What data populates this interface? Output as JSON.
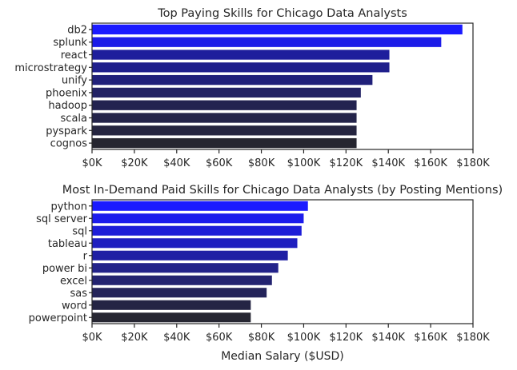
{
  "chart_data": [
    {
      "type": "bar",
      "orientation": "horizontal",
      "title": "Top Paying Skills for Chicago Data Analysts",
      "xlabel": "",
      "ylabel": "",
      "categories": [
        "db2",
        "splunk",
        "react",
        "microstrategy",
        "unify",
        "phoenix",
        "hadoop",
        "scala",
        "pyspark",
        "cognos"
      ],
      "values": [
        175000,
        165000,
        140500,
        140500,
        132500,
        127000,
        125000,
        125000,
        125000,
        125000
      ],
      "xlim": [
        0,
        180000
      ],
      "xticks": [
        0,
        20000,
        40000,
        60000,
        80000,
        100000,
        120000,
        140000,
        160000,
        180000
      ],
      "xtick_labels": [
        "$0K",
        "$20K",
        "$40K",
        "$60K",
        "$80K",
        "$100K",
        "$120K",
        "$140K",
        "$160K",
        "$180K"
      ],
      "grid": false,
      "palette": [
        "#1a1aff",
        "#1c1ce8",
        "#1e1e9c",
        "#1f1f8c",
        "#20207a",
        "#222264",
        "#232350",
        "#24244a",
        "#252540",
        "#262630"
      ]
    },
    {
      "type": "bar",
      "orientation": "horizontal",
      "title": "Most In-Demand Paid Skills for Chicago Data Analysts (by Posting Mentions)",
      "xlabel": "Median Salary ($USD)",
      "ylabel": "",
      "categories": [
        "python",
        "sql server",
        "sql",
        "tableau",
        "r",
        "power bi",
        "excel",
        "sas",
        "word",
        "powerpoint"
      ],
      "values": [
        102000,
        100000,
        99000,
        97000,
        92500,
        88000,
        85000,
        82500,
        75000,
        75000
      ],
      "xlim": [
        0,
        180000
      ],
      "xticks": [
        0,
        20000,
        40000,
        60000,
        80000,
        100000,
        120000,
        140000,
        160000,
        180000
      ],
      "xtick_labels": [
        "$0K",
        "$20K",
        "$40K",
        "$60K",
        "$80K",
        "$100K",
        "$120K",
        "$140K",
        "$160K",
        "$180K"
      ],
      "grid": false,
      "palette": [
        "#1a1aff",
        "#1c1cec",
        "#1e1ed8",
        "#1f1fbf",
        "#2020a4",
        "#22228a",
        "#232370",
        "#24245a",
        "#252544",
        "#262632"
      ]
    }
  ]
}
